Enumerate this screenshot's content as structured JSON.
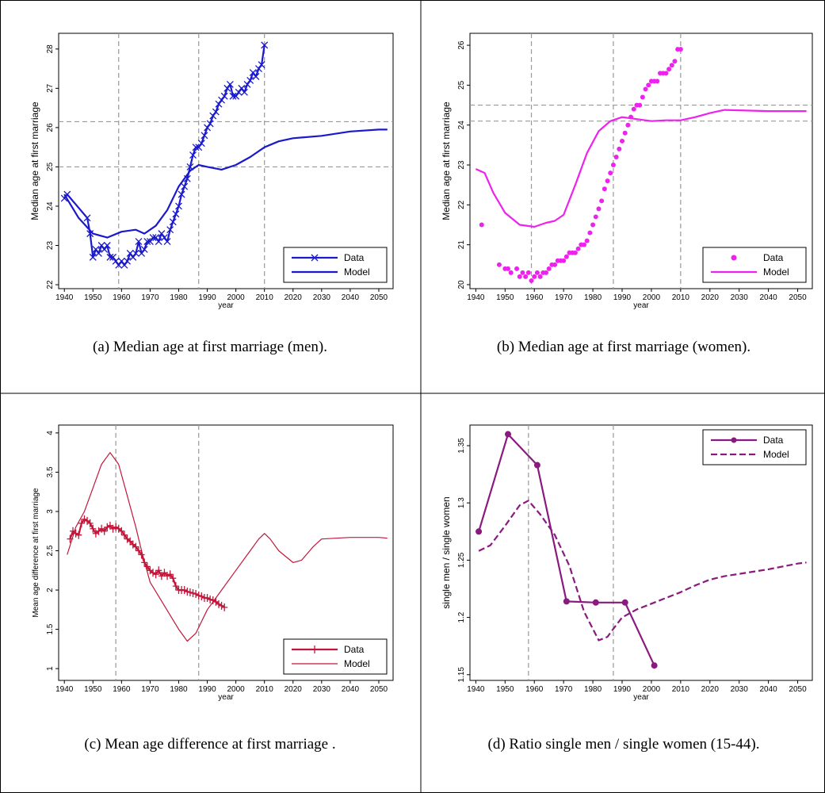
{
  "panels": [
    {
      "caption": "(a) Median age at first marriage (men).",
      "chart_data": {
        "type": "line",
        "xlabel": "year",
        "ylabel": "Median age at first marriage",
        "xlim": [
          1938,
          2055
        ],
        "ylim": [
          21.9,
          28.4
        ],
        "xticks": [
          "1940",
          "1950",
          "1960",
          "1970",
          "1980",
          "1990",
          "2000",
          "2010",
          "2020",
          "2030",
          "2040",
          "2050"
        ],
        "yticks": [
          "22",
          "23",
          "24",
          "25",
          "26",
          "27",
          "28"
        ],
        "vlines": [
          1959,
          1987,
          2010
        ],
        "hlines": [
          25.0,
          26.15
        ],
        "legend_position": "bottom-right",
        "series": [
          {
            "name": "Data",
            "color": "#1a1acc",
            "marker": "x",
            "line": "solid",
            "x": [
              1940,
              1941,
              1948,
              1949,
              1950,
              1951,
              1952,
              1953,
              1954,
              1955,
              1956,
              1957,
              1958,
              1959,
              1960,
              1961,
              1962,
              1963,
              1964,
              1965,
              1966,
              1967,
              1968,
              1969,
              1970,
              1971,
              1972,
              1973,
              1974,
              1975,
              1976,
              1977,
              1978,
              1979,
              1980,
              1981,
              1982,
              1983,
              1984,
              1985,
              1986,
              1987,
              1988,
              1989,
              1990,
              1991,
              1992,
              1993,
              1994,
              1995,
              1996,
              1997,
              1998,
              1999,
              2000,
              2001,
              2002,
              2003,
              2004,
              2005,
              2006,
              2007,
              2008,
              2009,
              2010
            ],
            "y": [
              24.2,
              24.3,
              23.7,
              23.3,
              22.7,
              22.9,
              22.8,
              23.0,
              22.9,
              23.0,
              22.7,
              22.7,
              22.6,
              22.5,
              22.6,
              22.5,
              22.6,
              22.8,
              22.7,
              22.8,
              23.1,
              22.8,
              22.9,
              23.1,
              23.1,
              23.2,
              23.2,
              23.1,
              23.3,
              23.2,
              23.1,
              23.4,
              23.6,
              23.8,
              24.0,
              24.3,
              24.5,
              24.7,
              25.0,
              25.3,
              25.5,
              25.5,
              25.6,
              25.8,
              26.0,
              26.1,
              26.3,
              26.4,
              26.6,
              26.7,
              26.8,
              27.0,
              27.1,
              26.8,
              26.8,
              26.9,
              27.0,
              26.9,
              27.1,
              27.2,
              27.4,
              27.3,
              27.5,
              27.6,
              28.1
            ]
          },
          {
            "name": "Model",
            "color": "#1a1acc",
            "marker": "none",
            "line": "solid",
            "x": [
              1940,
              1945,
              1950,
              1955,
              1960,
              1965,
              1968,
              1972,
              1976,
              1980,
              1984,
              1987,
              1990,
              1995,
              2000,
              2005,
              2010,
              2015,
              2020,
              2030,
              2040,
              2050,
              2053
            ],
            "y": [
              24.3,
              23.7,
              23.3,
              23.2,
              23.35,
              23.4,
              23.3,
              23.5,
              23.9,
              24.5,
              24.9,
              25.05,
              25.0,
              24.93,
              25.05,
              25.25,
              25.5,
              25.65,
              25.73,
              25.79,
              25.9,
              25.95,
              25.95
            ]
          }
        ]
      }
    },
    {
      "caption": "(b) Median age at first marriage (women).",
      "chart_data": {
        "type": "line",
        "xlabel": "year",
        "ylabel": "Median age at first marriage",
        "xlim": [
          1938,
          2055
        ],
        "ylim": [
          19.9,
          26.3
        ],
        "xticks": [
          "1940",
          "1950",
          "1960",
          "1970",
          "1980",
          "1990",
          "2000",
          "2010",
          "2020",
          "2030",
          "2040",
          "2050"
        ],
        "yticks": [
          "20",
          "21",
          "22",
          "23",
          "24",
          "25",
          "26"
        ],
        "vlines": [
          1959,
          1987,
          2010
        ],
        "hlines": [
          24.1,
          24.5
        ],
        "legend_position": "bottom-right",
        "series": [
          {
            "name": "Data",
            "color": "#ee22ee",
            "marker": "dot",
            "line": "none",
            "x": [
              1942,
              1948,
              1950,
              1951,
              1952,
              1954,
              1955,
              1956,
              1957,
              1958,
              1959,
              1960,
              1961,
              1962,
              1963,
              1964,
              1965,
              1966,
              1967,
              1968,
              1969,
              1970,
              1971,
              1972,
              1973,
              1974,
              1975,
              1976,
              1977,
              1978,
              1979,
              1980,
              1981,
              1982,
              1983,
              1984,
              1985,
              1986,
              1987,
              1988,
              1989,
              1990,
              1991,
              1992,
              1993,
              1994,
              1995,
              1996,
              1997,
              1998,
              1999,
              2000,
              2001,
              2002,
              2003,
              2004,
              2005,
              2006,
              2007,
              2008,
              2009,
              2010
            ],
            "y": [
              21.5,
              20.5,
              20.4,
              20.4,
              20.3,
              20.4,
              20.2,
              20.3,
              20.2,
              20.3,
              20.1,
              20.2,
              20.3,
              20.2,
              20.3,
              20.3,
              20.4,
              20.5,
              20.5,
              20.6,
              20.6,
              20.6,
              20.7,
              20.8,
              20.8,
              20.8,
              20.9,
              21.0,
              21.0,
              21.1,
              21.3,
              21.5,
              21.7,
              21.9,
              22.1,
              22.4,
              22.6,
              22.8,
              23.0,
              23.2,
              23.4,
              23.6,
              23.8,
              24.0,
              24.2,
              24.4,
              24.5,
              24.5,
              24.7,
              24.9,
              25.0,
              25.1,
              25.1,
              25.1,
              25.3,
              25.3,
              25.3,
              25.4,
              25.5,
              25.6,
              25.9,
              25.9
            ]
          },
          {
            "name": "Model",
            "color": "#ee22ee",
            "marker": "none",
            "line": "solid",
            "x": [
              1940,
              1943,
              1946,
              1950,
              1955,
              1960,
              1964,
              1967,
              1970,
              1974,
              1978,
              1982,
              1986,
              1990,
              1995,
              2000,
              2005,
              2010,
              2015,
              2020,
              2025,
              2030,
              2040,
              2050,
              2053
            ],
            "y": [
              22.9,
              22.8,
              22.3,
              21.8,
              21.5,
              21.45,
              21.55,
              21.6,
              21.75,
              22.5,
              23.3,
              23.85,
              24.1,
              24.2,
              24.15,
              24.1,
              24.12,
              24.12,
              24.2,
              24.3,
              24.38,
              24.37,
              24.35,
              24.35,
              24.35
            ]
          }
        ]
      }
    },
    {
      "caption": "(c) Mean age difference at first marriage .",
      "chart_data": {
        "type": "line",
        "xlabel": "year",
        "ylabel": "Mean age difference at first marriage",
        "xlim": [
          1938,
          2055
        ],
        "ylim": [
          0.85,
          4.1
        ],
        "xticks": [
          "1940",
          "1950",
          "1960",
          "1970",
          "1980",
          "1990",
          "2000",
          "2010",
          "2020",
          "2030",
          "2040",
          "2050"
        ],
        "yticks": [
          "1",
          "1.5",
          "2",
          "2.5",
          "3",
          "3.5",
          "4"
        ],
        "vlines": [
          1958,
          1987
        ],
        "hlines": [],
        "legend_position": "bottom-right",
        "series": [
          {
            "name": "Data",
            "color": "#c1173a",
            "marker": "plus",
            "line": "solid",
            "x": [
              1942,
              1943,
              1944,
              1945,
              1946,
              1947,
              1948,
              1949,
              1950,
              1951,
              1952,
              1953,
              1954,
              1955,
              1956,
              1957,
              1958,
              1959,
              1960,
              1961,
              1962,
              1963,
              1964,
              1965,
              1966,
              1967,
              1968,
              1969,
              1970,
              1971,
              1972,
              1973,
              1974,
              1975,
              1976,
              1977,
              1978,
              1979,
              1980,
              1981,
              1982,
              1983,
              1984,
              1985,
              1986,
              1987,
              1988,
              1989,
              1990,
              1991,
              1992,
              1993,
              1994,
              1995,
              1996
            ],
            "y": [
              2.65,
              2.75,
              2.72,
              2.7,
              2.85,
              2.9,
              2.88,
              2.85,
              2.78,
              2.72,
              2.75,
              2.78,
              2.75,
              2.8,
              2.82,
              2.78,
              2.8,
              2.78,
              2.75,
              2.7,
              2.65,
              2.62,
              2.58,
              2.55,
              2.5,
              2.45,
              2.35,
              2.3,
              2.25,
              2.22,
              2.2,
              2.25,
              2.18,
              2.22,
              2.18,
              2.2,
              2.15,
              2.05,
              2.0,
              2.0,
              2.0,
              1.98,
              1.97,
              1.96,
              1.95,
              1.93,
              1.92,
              1.9,
              1.9,
              1.88,
              1.87,
              1.85,
              1.82,
              1.8,
              1.78
            ]
          },
          {
            "name": "Model",
            "color": "#c1173a",
            "marker": "none",
            "line": "solid",
            "x": [
              1941,
              1944,
              1947,
              1950,
              1953,
              1956,
              1959,
              1962,
              1965,
              1967,
              1970,
              1975,
              1980,
              1983,
              1986,
              1990,
              1995,
              2000,
              2005,
              2008,
              2010,
              2012,
              2015,
              2020,
              2023,
              2027,
              2030,
              2040,
              2050,
              2053
            ],
            "y": [
              2.45,
              2.8,
              3.0,
              3.3,
              3.6,
              3.75,
              3.6,
              3.2,
              2.8,
              2.5,
              2.1,
              1.8,
              1.5,
              1.35,
              1.45,
              1.75,
              2.0,
              2.25,
              2.5,
              2.65,
              2.72,
              2.65,
              2.5,
              2.35,
              2.38,
              2.55,
              2.65,
              2.67,
              2.67,
              2.66
            ]
          }
        ]
      }
    },
    {
      "caption": "(d) Ratio single men / single women (15-44).",
      "chart_data": {
        "type": "line",
        "xlabel": "year",
        "ylabel": "single men / single women",
        "xlim": [
          1938,
          2055
        ],
        "ylim": [
          1.145,
          1.368
        ],
        "xticks": [
          "1940",
          "1950",
          "1960",
          "1970",
          "1980",
          "1990",
          "2000",
          "2010",
          "2020",
          "2030",
          "2040",
          "2050"
        ],
        "yticks": [
          "1.15",
          "1.2",
          "1.25",
          "1.3",
          "1.35"
        ],
        "vlines": [
          1958,
          1987
        ],
        "hlines": [],
        "legend_position": "top-right",
        "series": [
          {
            "name": "Data",
            "color": "#8b1a7e",
            "marker": "dot",
            "line": "solid",
            "x": [
              1941,
              1951,
              1961,
              1971,
              1981,
              1991,
              2001
            ],
            "y": [
              1.275,
              1.36,
              1.333,
              1.214,
              1.213,
              1.213,
              1.158
            ]
          },
          {
            "name": "Model",
            "color": "#8b1a7e",
            "marker": "none",
            "line": "dashed",
            "x": [
              1941,
              1945,
              1950,
              1955,
              1958,
              1962,
              1967,
              1972,
              1977,
              1982,
              1985,
              1987,
              1990,
              1995,
              2000,
              2005,
              2010,
              2015,
              2020,
              2025,
              2030,
              2040,
              2050,
              2053
            ],
            "y": [
              1.258,
              1.263,
              1.28,
              1.298,
              1.302,
              1.29,
              1.272,
              1.245,
              1.205,
              1.18,
              1.183,
              1.19,
              1.2,
              1.207,
              1.212,
              1.217,
              1.222,
              1.228,
              1.233,
              1.236,
              1.238,
              1.242,
              1.247,
              1.248
            ]
          }
        ]
      }
    }
  ]
}
